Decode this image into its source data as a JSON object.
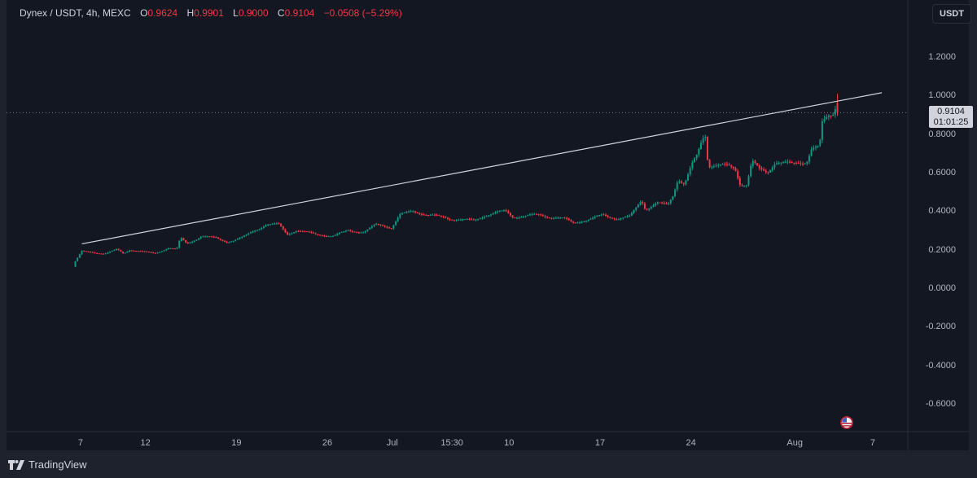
{
  "legend": {
    "symbol": "Dynex / USDT, 4h, MEXC",
    "open_label": "O",
    "open": "0.9624",
    "high_label": "H",
    "high": "0.9901",
    "low_label": "L",
    "low": "0.9000",
    "close_label": "C",
    "close": "0.9104",
    "change": "−0.0508 (−5.29%)"
  },
  "unit_button": "USDT",
  "last_price": {
    "price": "0.9104",
    "countdown": "01:01:25"
  },
  "footer": {
    "brand": "TradingView"
  },
  "colors": {
    "up": "#089981",
    "down": "#f23645",
    "background": "#131722",
    "trendline": "#d1d4dc"
  },
  "event_icon": "us-flag-icon",
  "chart_data": {
    "type": "candlestick",
    "title": "Dynex / USDT, 4h, MEXC",
    "x_unit": "days since Jun 7",
    "xlim": [
      -5.7,
      63.7
    ],
    "ylim": [
      -0.744,
      1.36
    ],
    "grid": false,
    "y_ticks": [
      {
        "value": 1.2,
        "label": "1.2000"
      },
      {
        "value": 1.0,
        "label": "1.0000"
      },
      {
        "value": 0.8,
        "label": "0.8000"
      },
      {
        "value": 0.6,
        "label": "0.6000"
      },
      {
        "value": 0.4,
        "label": "0.4000"
      },
      {
        "value": 0.2,
        "label": "0.2000"
      },
      {
        "value": 0.0,
        "label": "0.0000"
      },
      {
        "value": -0.2,
        "label": "-0.2000"
      },
      {
        "value": -0.4,
        "label": "-0.4000"
      },
      {
        "value": -0.6,
        "label": "-0.6000"
      }
    ],
    "x_ticks": [
      {
        "day": 0,
        "label": "7"
      },
      {
        "day": 5,
        "label": "12"
      },
      {
        "day": 12,
        "label": "19"
      },
      {
        "day": 19,
        "label": "26"
      },
      {
        "day": 24,
        "label": "Jul"
      },
      {
        "day": 28.6,
        "label": "15:30"
      },
      {
        "day": 33,
        "label": "10"
      },
      {
        "day": 40,
        "label": "17"
      },
      {
        "day": 47,
        "label": "24"
      },
      {
        "day": 55,
        "label": "Aug"
      },
      {
        "day": 61,
        "label": "7"
      }
    ],
    "candle_interval_days": 0.1667,
    "close_path": [
      [
        -0.4,
        0.14
      ],
      [
        0.1,
        0.19
      ],
      [
        1.9,
        0.18
      ],
      [
        2.8,
        0.2
      ],
      [
        3.3,
        0.18
      ],
      [
        3.8,
        0.2
      ],
      [
        5.7,
        0.18
      ],
      [
        6.8,
        0.21
      ],
      [
        7.4,
        0.2
      ],
      [
        7.7,
        0.26
      ],
      [
        8.2,
        0.23
      ],
      [
        9.3,
        0.27
      ],
      [
        10.4,
        0.26
      ],
      [
        11.3,
        0.24
      ],
      [
        12.4,
        0.26
      ],
      [
        13.4,
        0.3
      ],
      [
        14.3,
        0.33
      ],
      [
        15.3,
        0.33
      ],
      [
        15.9,
        0.28
      ],
      [
        16.6,
        0.3
      ],
      [
        18.1,
        0.28
      ],
      [
        19.5,
        0.27
      ],
      [
        20.6,
        0.3
      ],
      [
        21.8,
        0.29
      ],
      [
        22.8,
        0.33
      ],
      [
        23.7,
        0.32
      ],
      [
        23.9,
        0.31
      ],
      [
        24.6,
        0.38
      ],
      [
        25.6,
        0.4
      ],
      [
        26.8,
        0.38
      ],
      [
        28.5,
        0.36
      ],
      [
        30.3,
        0.35
      ],
      [
        31.2,
        0.38
      ],
      [
        32.7,
        0.4
      ],
      [
        33.3,
        0.37
      ],
      [
        35.2,
        0.38
      ],
      [
        37.2,
        0.36
      ],
      [
        37.9,
        0.34
      ],
      [
        39.4,
        0.36
      ],
      [
        40.2,
        0.38
      ],
      [
        41.4,
        0.36
      ],
      [
        42.3,
        0.37
      ],
      [
        42.7,
        0.41
      ],
      [
        43.2,
        0.46
      ],
      [
        43.5,
        0.41
      ],
      [
        44.4,
        0.44
      ],
      [
        45.2,
        0.43
      ],
      [
        45.6,
        0.48
      ],
      [
        46.0,
        0.57
      ],
      [
        46.5,
        0.54
      ],
      [
        47.1,
        0.64
      ],
      [
        47.5,
        0.69
      ],
      [
        47.9,
        0.78
      ],
      [
        48.2,
        0.8
      ],
      [
        48.3,
        0.64
      ],
      [
        49.0,
        0.64
      ],
      [
        49.8,
        0.63
      ],
      [
        50.4,
        0.62
      ],
      [
        50.8,
        0.54
      ],
      [
        51.3,
        0.54
      ],
      [
        51.7,
        0.66
      ],
      [
        52.3,
        0.61
      ],
      [
        52.9,
        0.6
      ],
      [
        53.5,
        0.66
      ],
      [
        54.2,
        0.65
      ],
      [
        54.8,
        0.64
      ],
      [
        55.9,
        0.66
      ],
      [
        56.3,
        0.73
      ],
      [
        56.9,
        0.73
      ],
      [
        57.1,
        0.85
      ],
      [
        57.6,
        0.89
      ],
      [
        57.9,
        0.9
      ],
      [
        58.2,
        0.96
      ],
      [
        58.4,
        0.9104
      ]
    ],
    "trendline": [
      [
        0.1,
        0.23
      ],
      [
        61.7,
        1.014
      ]
    ],
    "last_price_line": 0.9104
  }
}
